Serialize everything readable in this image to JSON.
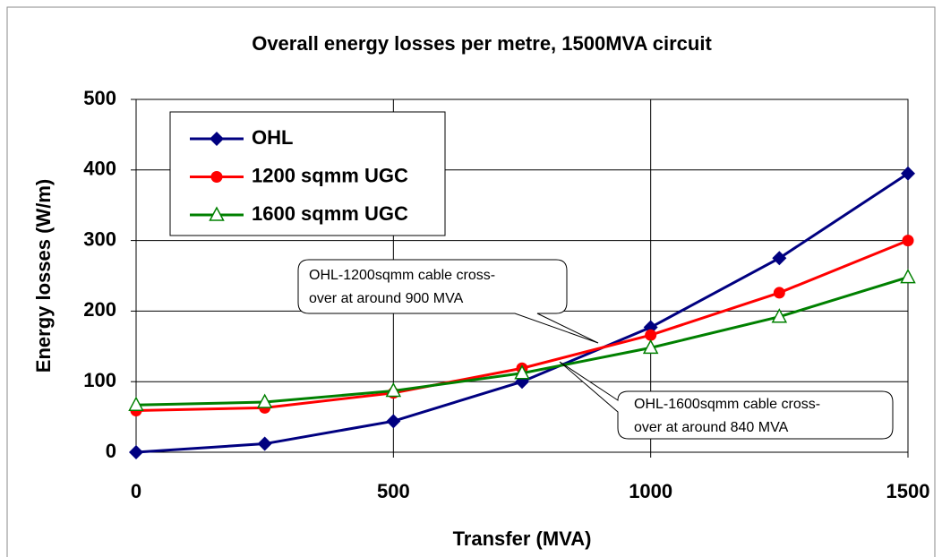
{
  "chart_data": {
    "type": "line",
    "title": "Overall energy losses per metre, 1500MVA circuit",
    "x_label": "Transfer (MVA)",
    "y_label": "Energy losses (W/m)",
    "x": [
      0,
      250,
      500,
      750,
      1000,
      1250,
      1500
    ],
    "series": [
      {
        "name": "OHL",
        "color": "#000080",
        "marker": "diamond",
        "values": [
          0,
          12,
          44,
          100,
          177,
          275,
          395
        ]
      },
      {
        "name": "1200 sqmm UGC",
        "color": "#ff0000",
        "marker": "circle",
        "values": [
          59,
          63,
          84,
          119,
          166,
          226,
          300
        ]
      },
      {
        "name": "1600 sqmm UGC",
        "color": "#008000",
        "marker": "triangle",
        "values": [
          67,
          71,
          87,
          112,
          148,
          192,
          248
        ]
      }
    ],
    "xlim": [
      0,
      1500
    ],
    "xticks": [
      0,
      500,
      1000,
      1500
    ],
    "ylim": [
      0,
      500
    ],
    "yticks": [
      0,
      100,
      200,
      300,
      400,
      500
    ],
    "grid": true,
    "legend": "upper left",
    "annotations": [
      {
        "lines": [
          "OHL-1200sqmm cable cross-",
          "over at around 900 MVA"
        ]
      },
      {
        "lines": [
          "OHL-1600sqmm cable cross-",
          "over at around 840 MVA"
        ]
      }
    ]
  }
}
